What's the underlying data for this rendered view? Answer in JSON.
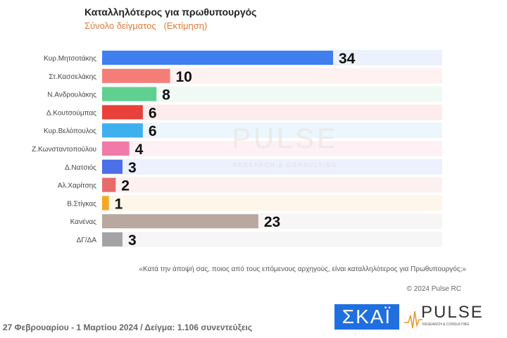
{
  "chart_data": {
    "type": "bar",
    "orientation": "horizontal",
    "title": "Καταλληλότερος για πρωθυπουργός",
    "subtitle": "Σύνολο δείγματος   (Εκτίμηση)",
    "categories": [
      "Κυρ.Μητσοτάκης",
      "Στ.Κασσελάκης",
      "Ν.Ανδρουλάκης",
      "Δ.Κουτσούμπας",
      "Κυρ.Βελόπουλος",
      "Ζ.Κωνσταντοπούλου",
      "Δ.Νατσιός",
      "Αλ.Χαρίτσης",
      "Β.Στίγκας",
      "Κανένας",
      "ΔΓ/ΔΑ"
    ],
    "values": [
      34,
      10,
      8,
      6,
      6,
      4,
      3,
      2,
      1,
      23,
      3
    ],
    "colors": [
      "#3f7ff0",
      "#f47d78",
      "#5fd08f",
      "#e8403a",
      "#3fb0ef",
      "#f07aa8",
      "#4a6fe8",
      "#e86b6b",
      "#f5a623",
      "#b8a8a0",
      "#a3a3a3"
    ],
    "xlim": [
      0,
      50
    ],
    "grid": false,
    "legend": "none"
  },
  "watermark": {
    "name": "PULSE",
    "tagline": "RESEARCH & CONSULTING"
  },
  "question": "«Κατά την άποψή σας, ποιος από τους επόμενους αρχηγούς, είναι καταλληλότερος για Πρωθυπουργός;»",
  "copyright": "© 2024 Pulse RC",
  "footer": "27 Φεβρουαρίου - 1 Μαρτίου 2024  /  Δείγμα:  1.106 συνεντεύξεις",
  "logos": {
    "skai": "ΣΚΑΪ",
    "pulse": "PULSE",
    "pulse_tagline": "RESEARCH & CONSULTING"
  }
}
